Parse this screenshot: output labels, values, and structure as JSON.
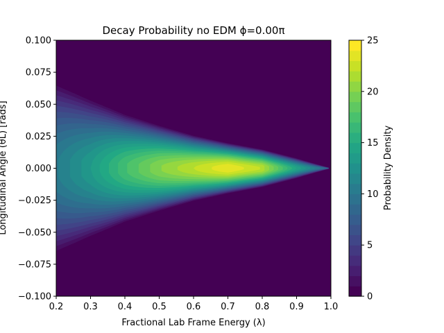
{
  "chart_data": {
    "type": "heatmap",
    "title": "Decay Probability no EDM ϕ=0.00π",
    "xlabel": "Fractional Lab Frame Energy (λ)",
    "ylabel": "Longitudinal Angle (θL) [rads]",
    "xlim": [
      0.2,
      1.0
    ],
    "ylim": [
      -0.1,
      0.1
    ],
    "xticks": [
      "0.2",
      "0.3",
      "0.4",
      "0.5",
      "0.6",
      "0.7",
      "0.8",
      "0.9",
      "1.0"
    ],
    "yticks": [
      "−0.100",
      "−0.075",
      "−0.050",
      "−0.025",
      "0.000",
      "0.025",
      "0.050",
      "0.075",
      "0.100"
    ],
    "colorbar": {
      "label": "Probability Density",
      "range": [
        0,
        25
      ],
      "ticks": [
        "0",
        "5",
        "10",
        "15",
        "20",
        "25"
      ],
      "colormap": "viridis",
      "levels": 25
    },
    "peak": {
      "x": 0.72,
      "y": 0.0,
      "value": 25
    },
    "angular_halfwidth": [
      {
        "x": 0.2,
        "y": 0.068
      },
      {
        "x": 0.3,
        "y": 0.055
      },
      {
        "x": 0.4,
        "y": 0.043
      },
      {
        "x": 0.5,
        "y": 0.034
      },
      {
        "x": 0.6,
        "y": 0.026
      },
      {
        "x": 0.7,
        "y": 0.02
      },
      {
        "x": 0.8,
        "y": 0.015
      },
      {
        "x": 0.9,
        "y": 0.008
      },
      {
        "x": 1.0,
        "y": 0.0
      }
    ],
    "center_profile": [
      {
        "x": 0.2,
        "y": 11
      },
      {
        "x": 0.3,
        "y": 14
      },
      {
        "x": 0.4,
        "y": 18
      },
      {
        "x": 0.5,
        "y": 21
      },
      {
        "x": 0.6,
        "y": 23
      },
      {
        "x": 0.7,
        "y": 25
      },
      {
        "x": 0.8,
        "y": 23
      },
      {
        "x": 0.9,
        "y": 15
      },
      {
        "x": 1.0,
        "y": 8
      }
    ],
    "grid": false
  }
}
